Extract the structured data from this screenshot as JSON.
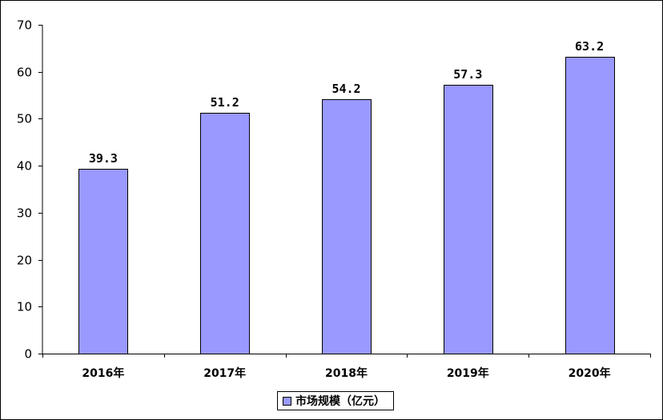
{
  "chart_data": {
    "type": "bar",
    "categories": [
      "2016年",
      "2017年",
      "2018年",
      "2019年",
      "2020年"
    ],
    "series": [
      {
        "name": "市场规模（亿元）",
        "values": [
          39.3,
          51.2,
          54.2,
          57.3,
          63.2
        ],
        "labels": [
          "39.3",
          "51.2",
          "54.2",
          "57.3",
          "63.2"
        ],
        "color": "#9999ff"
      }
    ],
    "yticks": [
      "0",
      "10",
      "20",
      "30",
      "40",
      "50",
      "60",
      "70"
    ],
    "ylim": [
      0,
      70
    ],
    "grid": false,
    "legend": "bottom-center"
  }
}
